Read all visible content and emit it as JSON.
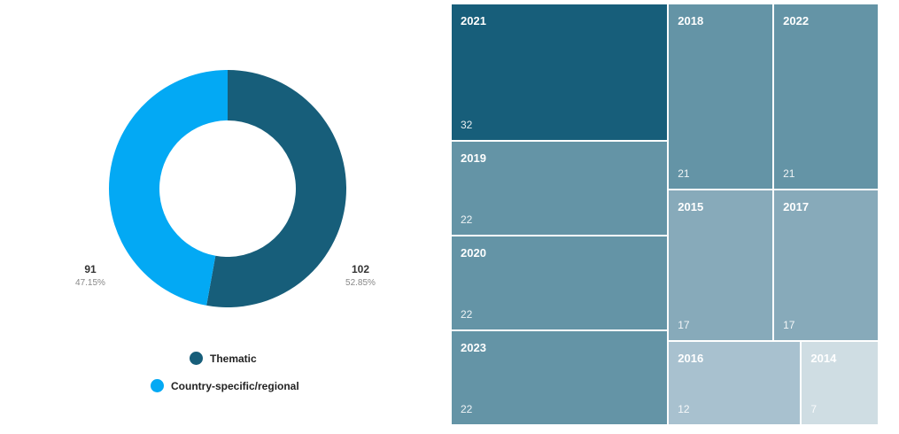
{
  "chart_data": [
    {
      "type": "pie",
      "categories": [
        "Thematic",
        "Country-specific/regional"
      ],
      "values": [
        102,
        91
      ],
      "percentages": [
        "52.85%",
        "47.15%"
      ],
      "value_labels": [
        "102",
        "91"
      ],
      "colors": [
        "#175E7A",
        "#03A9F4"
      ],
      "legend_position": "bottom",
      "legend": [
        "Thematic",
        "Country-specific/regional"
      ]
    },
    {
      "type": "treemap",
      "categories": [
        "2021",
        "2018",
        "2022",
        "2019",
        "2015",
        "2017",
        "2020",
        "2023",
        "2016",
        "2014"
      ],
      "values": [
        32,
        21,
        21,
        22,
        17,
        17,
        22,
        22,
        12,
        7
      ],
      "value_labels": [
        "32",
        "21",
        "21",
        "22",
        "17",
        "17",
        "22",
        "22",
        "12",
        "7"
      ],
      "colors": [
        "#175E7A",
        "#6494A6",
        "#6494A6",
        "#6494A6",
        "#87AABA",
        "#87AABA",
        "#6494A6",
        "#6494A6",
        "#A8C1CF",
        "#CFDDE3"
      ]
    }
  ]
}
